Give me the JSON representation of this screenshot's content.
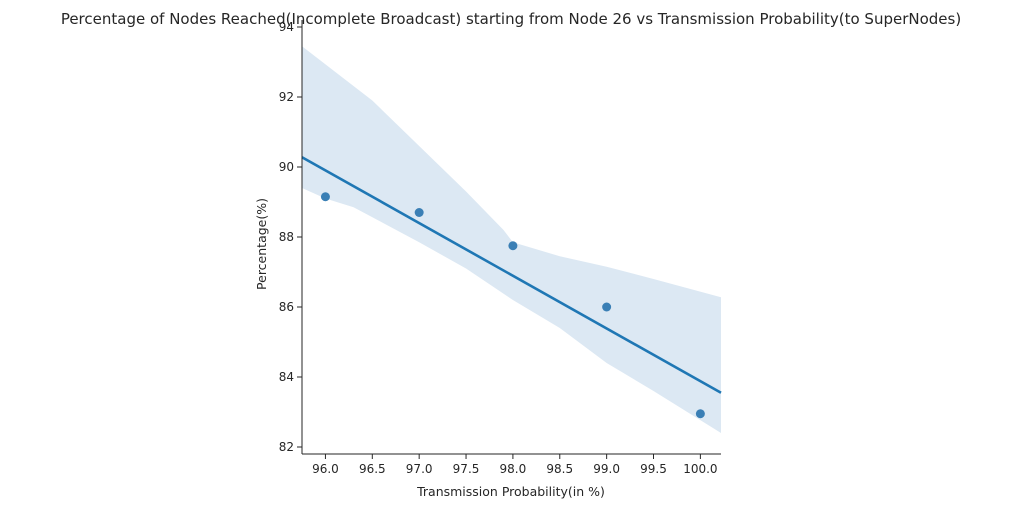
{
  "chart_data": {
    "type": "scatter",
    "title": "Percentage of Nodes Reached(Incomplete Broadcast) starting from Node 26 vs Transmission Probability(to SuperNodes)",
    "xlabel": "Transmission Probability(in %)",
    "ylabel": "Percentage(%)",
    "xlim": [
      95.75,
      100.22
    ],
    "ylim": [
      81.8,
      94.2
    ],
    "x_ticks": [
      "96.0",
      "96.5",
      "97.0",
      "97.5",
      "98.0",
      "98.5",
      "99.0",
      "99.5",
      "100.0"
    ],
    "y_ticks": [
      "82",
      "84",
      "86",
      "88",
      "90",
      "92",
      "94"
    ],
    "grid": false,
    "legend": "none",
    "series": [
      {
        "points": [
          {
            "x": 96.0,
            "y": 89.15
          },
          {
            "x": 97.0,
            "y": 88.7
          },
          {
            "x": 98.0,
            "y": 87.75
          },
          {
            "x": 99.0,
            "y": 86.0
          },
          {
            "x": 100.0,
            "y": 82.95
          }
        ]
      }
    ],
    "regression_line": {
      "x": [
        95.75,
        100.22
      ],
      "y": [
        90.28,
        83.55
      ]
    },
    "confidence_band": {
      "upper": [
        {
          "x": 95.75,
          "y": 93.45
        },
        {
          "x": 96.5,
          "y": 91.9
        },
        {
          "x": 97.0,
          "y": 90.6
        },
        {
          "x": 97.5,
          "y": 89.3
        },
        {
          "x": 97.9,
          "y": 88.2
        },
        {
          "x": 98.0,
          "y": 87.85
        },
        {
          "x": 98.5,
          "y": 87.45
        },
        {
          "x": 99.0,
          "y": 87.15
        },
        {
          "x": 99.5,
          "y": 86.8
        },
        {
          "x": 100.22,
          "y": 86.28
        }
      ],
      "lower": [
        {
          "x": 95.75,
          "y": 89.4
        },
        {
          "x": 96.0,
          "y": 89.1
        },
        {
          "x": 96.3,
          "y": 88.85
        },
        {
          "x": 97.0,
          "y": 87.85
        },
        {
          "x": 97.5,
          "y": 87.1
        },
        {
          "x": 98.0,
          "y": 86.2
        },
        {
          "x": 98.5,
          "y": 85.4
        },
        {
          "x": 99.0,
          "y": 84.4
        },
        {
          "x": 99.5,
          "y": 83.6
        },
        {
          "x": 100.22,
          "y": 82.4
        }
      ]
    },
    "colors": {
      "point": "#3a7fb5",
      "line": "#1f77b4",
      "band": "#dce8f3",
      "axis": "#262626"
    }
  }
}
